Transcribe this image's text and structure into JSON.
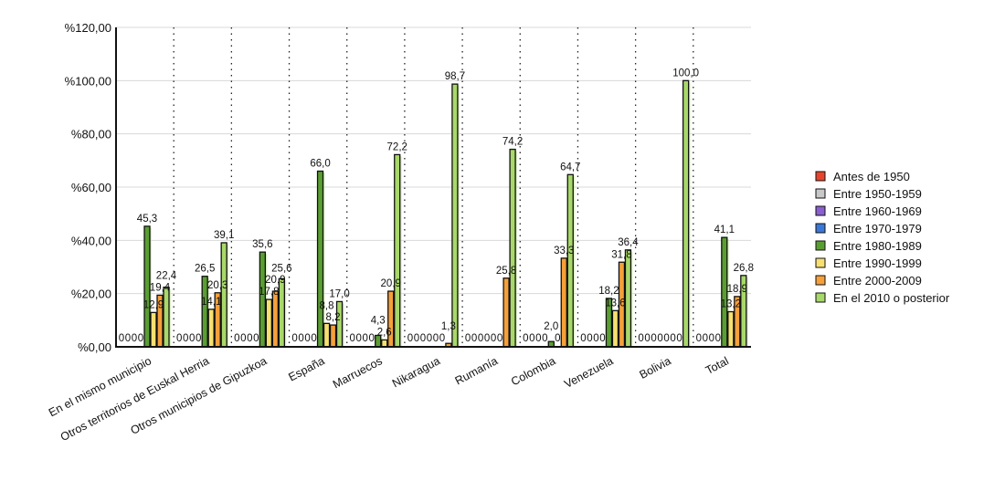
{
  "chart_data": {
    "type": "bar",
    "title": "",
    "xlabel": "",
    "ylabel": "",
    "ylim": [
      0,
      120
    ],
    "yticks": [
      "%0,00",
      "%20,00",
      "%40,00",
      "%60,00",
      "%80,00",
      "%100,00",
      "%120,00"
    ],
    "categories": [
      "En el mismo municipio",
      "Otros territorios de Euskal Herria",
      "Otros municipios de Gipuzkoa",
      "España",
      "Marruecos",
      "Nikaragua",
      "Rumanía",
      "Colombia",
      "Venezuela",
      "Bolivia",
      "Total"
    ],
    "legend_position": "right",
    "series": [
      {
        "name": "Antes de 1950",
        "color": "#e8442c",
        "values": [
          0,
          0,
          0,
          0,
          0,
          0,
          0,
          0,
          0,
          0,
          0
        ]
      },
      {
        "name": "Entre 1950-1959",
        "color": "#c8c8c8",
        "values": [
          0,
          0,
          0,
          0,
          0,
          0,
          0,
          0,
          0,
          0,
          0
        ]
      },
      {
        "name": "Entre 1960-1969",
        "color": "#8a5fd0",
        "values": [
          0,
          0,
          0,
          0,
          0,
          0,
          0,
          0,
          0,
          0,
          0
        ]
      },
      {
        "name": "Entre 1970-1979",
        "color": "#3a78d8",
        "values": [
          0,
          0,
          0,
          0,
          0,
          0,
          0,
          0,
          0,
          0,
          0
        ]
      },
      {
        "name": "Entre 1980-1989",
        "color": "#5a9e32",
        "values": [
          45.3,
          26.5,
          35.6,
          66.0,
          4.3,
          0,
          0,
          2.0,
          18.2,
          0,
          41.1
        ]
      },
      {
        "name": "Entre 1990-1999",
        "color": "#f6e070",
        "values": [
          12.9,
          14.1,
          17.8,
          8.8,
          2.6,
          0,
          0,
          0,
          13.6,
          0,
          13.2
        ]
      },
      {
        "name": "Entre 2000-2009",
        "color": "#f5a03a",
        "values": [
          19.4,
          20.3,
          20.9,
          8.2,
          20.9,
          1.3,
          25.8,
          33.3,
          31.8,
          0,
          18.9
        ]
      },
      {
        "name": "En el 2010 o posterior",
        "color": "#a8d86a",
        "values": [
          22.4,
          39.1,
          25.6,
          17.0,
          72.2,
          98.7,
          74.2,
          64.7,
          36.4,
          100.0,
          26.8
        ]
      }
    ]
  }
}
